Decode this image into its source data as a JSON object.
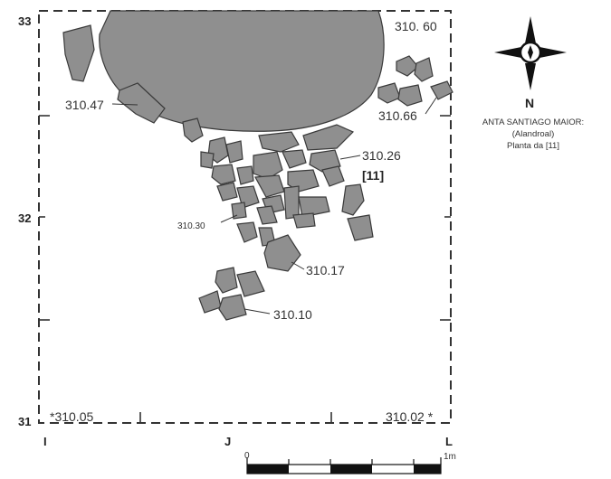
{
  "grid": {
    "row_labels": [
      "33",
      "32",
      "31"
    ],
    "col_labels": [
      "I",
      "J",
      "L"
    ]
  },
  "elevations": {
    "top_right": "310. 60",
    "upper_left": "310.47",
    "upper_right": "310.66",
    "center_right": "310.26",
    "square_ref": "[11]",
    "center_left": "310.30",
    "lower": "310.17",
    "bottom": "310.10",
    "corner_bottom_left": "*310.05",
    "corner_bottom_right": "310.02 *"
  },
  "compass": {
    "north_label": "N"
  },
  "site": {
    "name": "ANTA SANTIAGO MAIOR:",
    "place": "(Alandroal)",
    "caption": "Planta da [11]"
  },
  "scale": {
    "start_label": "0",
    "end_label": "1m"
  },
  "colors": {
    "stone_fill": "#8f8f8f",
    "outline": "#3a3a3a"
  }
}
